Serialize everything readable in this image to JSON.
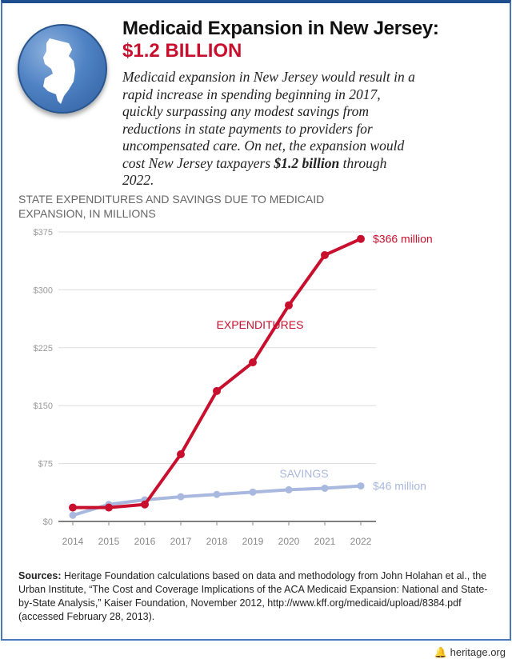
{
  "header": {
    "title": "Medicaid Expansion in New Jersey:",
    "subtitle": "$1.2 BILLION",
    "intro_pre": "Medicaid expansion in New Jersey would result in a rapid increase in spending beginning in 2017, quickly surpassing any modest savings from reductions in state payments to providers for uncompensated care. On net, the expansion would cost New Jersey taxpayers ",
    "intro_bold": "$1.2 billion",
    "intro_post": " through 2022.",
    "icon": "new-jersey-state-icon"
  },
  "chart_data": {
    "type": "line",
    "title": "STATE EXPENDITURES AND SAVINGS DUE TO MEDICAID EXPANSION, IN MILLIONS",
    "x": [
      "2014",
      "2015",
      "2016",
      "2017",
      "2018",
      "2019",
      "2020",
      "2021",
      "2022"
    ],
    "ylim": [
      0,
      375
    ],
    "yticks": [
      0,
      75,
      150,
      225,
      300,
      375
    ],
    "ytick_labels": [
      "$0",
      "$75",
      "$150",
      "$225",
      "$300",
      "$375"
    ],
    "grid": true,
    "series": [
      {
        "name": "EXPENDITURES",
        "color": "#c8102e",
        "values": [
          18,
          18,
          22,
          87,
          169,
          206,
          280,
          345,
          366
        ],
        "end_label": "$366 million"
      },
      {
        "name": "SAVINGS",
        "color": "#a9b8de",
        "values": [
          8,
          22,
          28,
          32,
          35,
          38,
          41,
          43,
          46
        ],
        "end_label": "$46 million"
      }
    ]
  },
  "sources": {
    "label": "Sources:",
    "text": " Heritage Foundation calculations based on data and methodology from John Holahan et al., the Urban Institute, “The Cost and Coverage Implications of the ACA Medicaid Expansion: National and State-by-State Analysis,” Kaiser Foundation, November 2012, http://www.kff.org/medicaid/upload/8384.pdf (accessed February 28, 2013)."
  },
  "footer": {
    "site": "heritage.org",
    "icon": "liberty-bell-icon"
  }
}
